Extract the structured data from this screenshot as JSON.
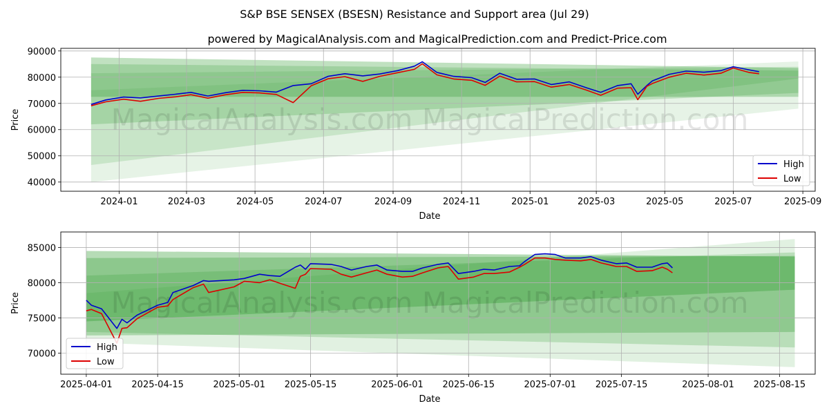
{
  "title": "S&P BSE SENSEX (BSESN) Resistance and Support area (Jul 29)",
  "subtitle": "powered by MagicalAnalysis.com and MagicalPrediction.com and Predict-Price.com",
  "watermark": "MagicalAnalysis.com   MagicalPrediction.com",
  "colors": {
    "high": "#0000cc",
    "low": "#dd0000",
    "band": "#2e9a2e",
    "grid": "#b0b0b0"
  },
  "chart_data": [
    {
      "type": "line",
      "xlabel": "Date",
      "ylabel": "Price",
      "xlim": [
        "2023-11-10",
        "2025-09-12"
      ],
      "ylim": [
        36500,
        91000
      ],
      "x_ticks": [
        "2024-01",
        "2024-03",
        "2024-05",
        "2024-07",
        "2024-09",
        "2024-11",
        "2025-01",
        "2025-03",
        "2025-05",
        "2025-07",
        "2025-09"
      ],
      "y_ticks": [
        40000,
        50000,
        60000,
        70000,
        80000,
        90000
      ],
      "grid": true,
      "legend": "lower-right",
      "bands": [
        {
          "x": [
            "2023-12-07",
            "2025-08-28"
          ],
          "upper": [
            87500,
            83500
          ],
          "lower": [
            72500,
            72500
          ],
          "opacity": 0.3
        },
        {
          "x": [
            "2023-12-07",
            "2025-08-28"
          ],
          "upper": [
            85000,
            82500
          ],
          "lower": [
            62000,
            74000
          ],
          "opacity": 0.22
        },
        {
          "x": [
            "2023-12-07",
            "2025-08-28"
          ],
          "upper": [
            81500,
            84000
          ],
          "lower": [
            46500,
            79500
          ],
          "opacity": 0.16
        },
        {
          "x": [
            "2023-12-07",
            "2025-08-28"
          ],
          "upper": [
            75000,
            86000
          ],
          "lower": [
            40000,
            68000
          ],
          "opacity": 0.12
        }
      ],
      "series": [
        {
          "name": "High",
          "points": [
            [
              "2023-12-07",
              69600
            ],
            [
              "2023-12-20",
              71300
            ],
            [
              "2024-01-05",
              72400
            ],
            [
              "2024-01-20",
              72100
            ],
            [
              "2024-02-05",
              72800
            ],
            [
              "2024-02-20",
              73500
            ],
            [
              "2024-03-05",
              74200
            ],
            [
              "2024-03-20",
              72800
            ],
            [
              "2024-04-05",
              74100
            ],
            [
              "2024-04-20",
              75000
            ],
            [
              "2024-05-05",
              74800
            ],
            [
              "2024-05-20",
              74300
            ],
            [
              "2024-06-04",
              76800
            ],
            [
              "2024-06-20",
              77500
            ],
            [
              "2024-07-05",
              80300
            ],
            [
              "2024-07-20",
              81300
            ],
            [
              "2024-08-05",
              80500
            ],
            [
              "2024-08-20",
              81200
            ],
            [
              "2024-09-05",
              82500
            ],
            [
              "2024-09-20",
              84200
            ],
            [
              "2024-09-27",
              85900
            ],
            [
              "2024-10-10",
              81800
            ],
            [
              "2024-10-25",
              80300
            ],
            [
              "2024-11-10",
              79800
            ],
            [
              "2024-11-22",
              78000
            ],
            [
              "2024-12-05",
              81500
            ],
            [
              "2024-12-20",
              79200
            ],
            [
              "2025-01-05",
              79300
            ],
            [
              "2025-01-20",
              77200
            ],
            [
              "2025-02-05",
              78200
            ],
            [
              "2025-02-20",
              76000
            ],
            [
              "2025-03-05",
              74200
            ],
            [
              "2025-03-20",
              76800
            ],
            [
              "2025-04-01",
              77500
            ],
            [
              "2025-04-07",
              73500
            ],
            [
              "2025-04-15",
              76800
            ],
            [
              "2025-04-20",
              78600
            ],
            [
              "2025-05-05",
              81100
            ],
            [
              "2025-05-20",
              82300
            ],
            [
              "2025-06-05",
              81900
            ],
            [
              "2025-06-20",
              82500
            ],
            [
              "2025-07-01",
              84000
            ],
            [
              "2025-07-15",
              82800
            ],
            [
              "2025-07-24",
              82100
            ]
          ]
        },
        {
          "name": "Low",
          "points": [
            [
              "2023-12-07",
              69100
            ],
            [
              "2023-12-20",
              70600
            ],
            [
              "2024-01-05",
              71600
            ],
            [
              "2024-01-20",
              70800
            ],
            [
              "2024-02-05",
              71900
            ],
            [
              "2024-02-20",
              72500
            ],
            [
              "2024-03-05",
              73300
            ],
            [
              "2024-03-20",
              72000
            ],
            [
              "2024-04-05",
              73300
            ],
            [
              "2024-04-20",
              74200
            ],
            [
              "2024-05-05",
              74000
            ],
            [
              "2024-05-20",
              73400
            ],
            [
              "2024-06-04",
              70300
            ],
            [
              "2024-06-20",
              76700
            ],
            [
              "2024-07-05",
              79400
            ],
            [
              "2024-07-20",
              80200
            ],
            [
              "2024-08-05",
              78400
            ],
            [
              "2024-08-20",
              80300
            ],
            [
              "2024-09-05",
              81700
            ],
            [
              "2024-09-20",
              83000
            ],
            [
              "2024-09-27",
              85100
            ],
            [
              "2024-10-10",
              80900
            ],
            [
              "2024-10-25",
              79300
            ],
            [
              "2024-11-10",
              78800
            ],
            [
              "2024-11-22",
              76900
            ],
            [
              "2024-12-05",
              80400
            ],
            [
              "2024-12-20",
              78200
            ],
            [
              "2025-01-05",
              78300
            ],
            [
              "2025-01-20",
              76200
            ],
            [
              "2025-02-05",
              77200
            ],
            [
              "2025-02-20",
              75100
            ],
            [
              "2025-03-05",
              73100
            ],
            [
              "2025-03-20",
              75800
            ],
            [
              "2025-04-01",
              76000
            ],
            [
              "2025-04-07",
              71400
            ],
            [
              "2025-04-15",
              76500
            ],
            [
              "2025-04-20",
              77600
            ],
            [
              "2025-05-05",
              80000
            ],
            [
              "2025-05-20",
              81500
            ],
            [
              "2025-06-05",
              80800
            ],
            [
              "2025-06-20",
              81500
            ],
            [
              "2025-07-01",
              83500
            ],
            [
              "2025-07-15",
              81800
            ],
            [
              "2025-07-24",
              81300
            ]
          ]
        }
      ]
    },
    {
      "type": "line",
      "xlabel": "Date",
      "ylabel": "Price",
      "xlim": [
        "2025-03-27",
        "2025-08-22"
      ],
      "ylim": [
        67000,
        87200
      ],
      "x_ticks": [
        "2025-04-01",
        "2025-04-15",
        "2025-05-01",
        "2025-05-15",
        "2025-06-01",
        "2025-06-15",
        "2025-07-01",
        "2025-07-15",
        "2025-08-01",
        "2025-08-15"
      ],
      "y_ticks": [
        70000,
        75000,
        80000,
        85000
      ],
      "grid": true,
      "legend": "lower-left",
      "bands": [
        {
          "x": [
            "2025-04-01",
            "2025-08-18"
          ],
          "upper": [
            84500,
            83700
          ],
          "lower": [
            74500,
            79000
          ],
          "opacity": 0.35
        },
        {
          "x": [
            "2025-04-01",
            "2025-08-18"
          ],
          "upper": [
            83500,
            83800
          ],
          "lower": [
            72500,
            73000
          ],
          "opacity": 0.3
        },
        {
          "x": [
            "2025-04-01",
            "2025-08-18"
          ],
          "upper": [
            81000,
            84300
          ],
          "lower": [
            73000,
            70800
          ],
          "opacity": 0.22
        },
        {
          "x": [
            "2025-04-01",
            "2025-08-18"
          ],
          "upper": [
            78500,
            86200
          ],
          "lower": [
            71500,
            68000
          ],
          "opacity": 0.14
        }
      ],
      "series": [
        {
          "name": "High",
          "points": [
            [
              "2025-04-01",
              77500
            ],
            [
              "2025-04-02",
              76800
            ],
            [
              "2025-04-04",
              76300
            ],
            [
              "2025-04-07",
              73500
            ],
            [
              "2025-04-08",
              74800
            ],
            [
              "2025-04-09",
              74300
            ],
            [
              "2025-04-11",
              75400
            ],
            [
              "2025-04-15",
              76800
            ],
            [
              "2025-04-17",
              77200
            ],
            [
              "2025-04-18",
              78600
            ],
            [
              "2025-04-22",
              79600
            ],
            [
              "2025-04-24",
              80300
            ],
            [
              "2025-04-25",
              80200
            ],
            [
              "2025-04-30",
              80400
            ],
            [
              "2025-05-02",
              80600
            ],
            [
              "2025-05-05",
              81200
            ],
            [
              "2025-05-07",
              81000
            ],
            [
              "2025-05-09",
              80900
            ],
            [
              "2025-05-12",
              82200
            ],
            [
              "2025-05-13",
              82500
            ],
            [
              "2025-05-14",
              81900
            ],
            [
              "2025-05-15",
              82700
            ],
            [
              "2025-05-19",
              82600
            ],
            [
              "2025-05-21",
              82300
            ],
            [
              "2025-05-23",
              81800
            ],
            [
              "2025-05-26",
              82300
            ],
            [
              "2025-05-28",
              82500
            ],
            [
              "2025-05-30",
              81800
            ],
            [
              "2025-06-02",
              81600
            ],
            [
              "2025-06-04",
              81600
            ],
            [
              "2025-06-06",
              82100
            ],
            [
              "2025-06-09",
              82600
            ],
            [
              "2025-06-11",
              82800
            ],
            [
              "2025-06-13",
              81300
            ],
            [
              "2025-06-16",
              81600
            ],
            [
              "2025-06-18",
              81900
            ],
            [
              "2025-06-20",
              81800
            ],
            [
              "2025-06-23",
              82300
            ],
            [
              "2025-06-25",
              82400
            ],
            [
              "2025-06-26",
              83000
            ],
            [
              "2025-06-28",
              84000
            ],
            [
              "2025-06-30",
              84100
            ],
            [
              "2025-07-02",
              84000
            ],
            [
              "2025-07-04",
              83500
            ],
            [
              "2025-07-07",
              83500
            ],
            [
              "2025-07-09",
              83700
            ],
            [
              "2025-07-11",
              83200
            ],
            [
              "2025-07-14",
              82700
            ],
            [
              "2025-07-16",
              82800
            ],
            [
              "2025-07-18",
              82200
            ],
            [
              "2025-07-21",
              82200
            ],
            [
              "2025-07-23",
              82700
            ],
            [
              "2025-07-24",
              82800
            ],
            [
              "2025-07-25",
              82100
            ]
          ]
        },
        {
          "name": "Low",
          "points": [
            [
              "2025-04-01",
              76000
            ],
            [
              "2025-04-02",
              76200
            ],
            [
              "2025-04-04",
              75600
            ],
            [
              "2025-04-07",
              71400
            ],
            [
              "2025-04-08",
              73500
            ],
            [
              "2025-04-09",
              73600
            ],
            [
              "2025-04-11",
              74900
            ],
            [
              "2025-04-15",
              76500
            ],
            [
              "2025-04-17",
              76700
            ],
            [
              "2025-04-18",
              77600
            ],
            [
              "2025-04-22",
              79300
            ],
            [
              "2025-04-24",
              79800
            ],
            [
              "2025-04-25",
              78600
            ],
            [
              "2025-04-30",
              79400
            ],
            [
              "2025-05-02",
              80200
            ],
            [
              "2025-05-05",
              80000
            ],
            [
              "2025-05-07",
              80400
            ],
            [
              "2025-05-09",
              79900
            ],
            [
              "2025-05-12",
              79200
            ],
            [
              "2025-05-13",
              80900
            ],
            [
              "2025-05-14",
              81200
            ],
            [
              "2025-05-15",
              82000
            ],
            [
              "2025-05-19",
              81900
            ],
            [
              "2025-05-21",
              81200
            ],
            [
              "2025-05-23",
              80800
            ],
            [
              "2025-05-26",
              81400
            ],
            [
              "2025-05-28",
              81800
            ],
            [
              "2025-05-30",
              81200
            ],
            [
              "2025-06-02",
              80800
            ],
            [
              "2025-06-04",
              80900
            ],
            [
              "2025-06-06",
              81400
            ],
            [
              "2025-06-09",
              82100
            ],
            [
              "2025-06-11",
              82300
            ],
            [
              "2025-06-13",
              80500
            ],
            [
              "2025-06-16",
              80800
            ],
            [
              "2025-06-18",
              81300
            ],
            [
              "2025-06-20",
              81300
            ],
            [
              "2025-06-23",
              81500
            ],
            [
              "2025-06-25",
              82200
            ],
            [
              "2025-06-26",
              82600
            ],
            [
              "2025-06-28",
              83500
            ],
            [
              "2025-06-30",
              83500
            ],
            [
              "2025-07-02",
              83300
            ],
            [
              "2025-07-04",
              83200
            ],
            [
              "2025-07-07",
              83100
            ],
            [
              "2025-07-09",
              83300
            ],
            [
              "2025-07-11",
              82800
            ],
            [
              "2025-07-14",
              82300
            ],
            [
              "2025-07-16",
              82300
            ],
            [
              "2025-07-18",
              81600
            ],
            [
              "2025-07-21",
              81700
            ],
            [
              "2025-07-23",
              82200
            ],
            [
              "2025-07-24",
              81900
            ],
            [
              "2025-07-25",
              81400
            ]
          ]
        }
      ]
    }
  ]
}
